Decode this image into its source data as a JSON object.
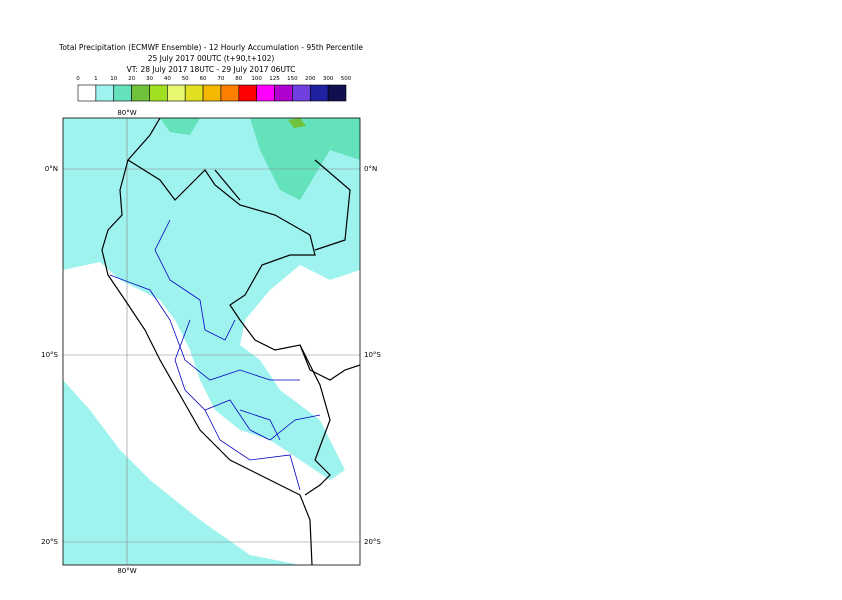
{
  "header": {
    "title": [
      "Total Precipitation (ECMWF Ensemble) - 12 Hourly Accumulation - 95th Percentile",
      "25 July 2017 00UTC (t+90,t+102)",
      "VT: 28 July 2017 18UTC - 29 July 2017 06UTC"
    ]
  },
  "legend": {
    "labels": [
      "0",
      "1",
      "10",
      "20",
      "30",
      "40",
      "50",
      "60",
      "70",
      "80",
      "100",
      "125",
      "150",
      "200",
      "300",
      "500"
    ],
    "colors": [
      "#ffffff",
      "#9ff3ef",
      "#63e2bb",
      "#6fc23a",
      "#a0e020",
      "#e8f870",
      "#e0e020",
      "#f5b800",
      "#ff8000",
      "#ff0000",
      "#ff00ff",
      "#b000d0",
      "#7040e0",
      "#2020a0",
      "#101050"
    ]
  },
  "map": {
    "lon_label": "80°W",
    "lat_labels": [
      "0°N",
      "10°S",
      "20°S"
    ]
  }
}
